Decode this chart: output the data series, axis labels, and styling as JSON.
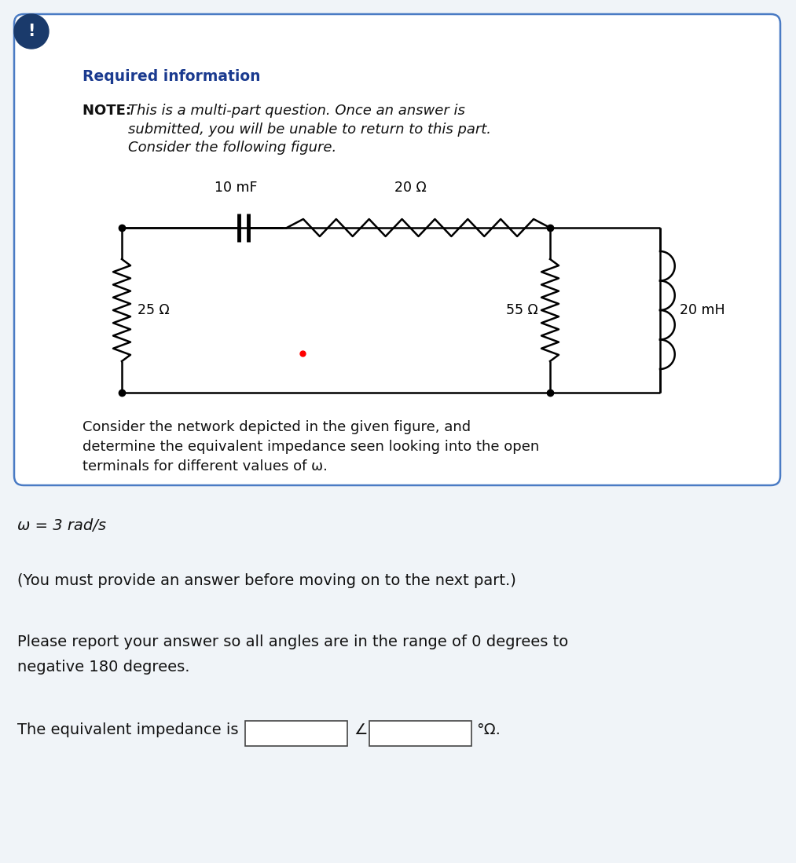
{
  "bg_color": "#f0f4f8",
  "card_bg": "#ffffff",
  "card_border_color": "#4a7bc4",
  "icon_bg": "#1a3a6b",
  "icon_text": "!",
  "required_info_text": "Required information",
  "required_info_color": "#1a3a8f",
  "note_bold": "NOTE: ",
  "note_italic": "This is a multi-part question. Once an answer is\nsubmitted, you will be unable to return to this part.\nConsider the following figure.",
  "circuit_label_10mF": "10 mF",
  "circuit_label_20ohm": "20 Ω",
  "circuit_label_25ohm": "25 Ω",
  "circuit_label_55ohm": "55 Ω",
  "circuit_label_20mH": "20 mH",
  "below_text1": "Consider the network depicted in the given figure, and\ndetermine the equivalent impedance seen looking into the open\nterminals for different values of ω.",
  "omega_line": "ω = 3 rad/s",
  "you_must": "(You must provide an answer before moving on to the next part.)",
  "please_report1": "Please report your answer so all angles are in the range of 0 degrees to",
  "please_report2": "negative 180 degrees.",
  "answer_line": "The equivalent impedance is",
  "degree_omega": "°Ω.",
  "angle_symbol": "∠"
}
